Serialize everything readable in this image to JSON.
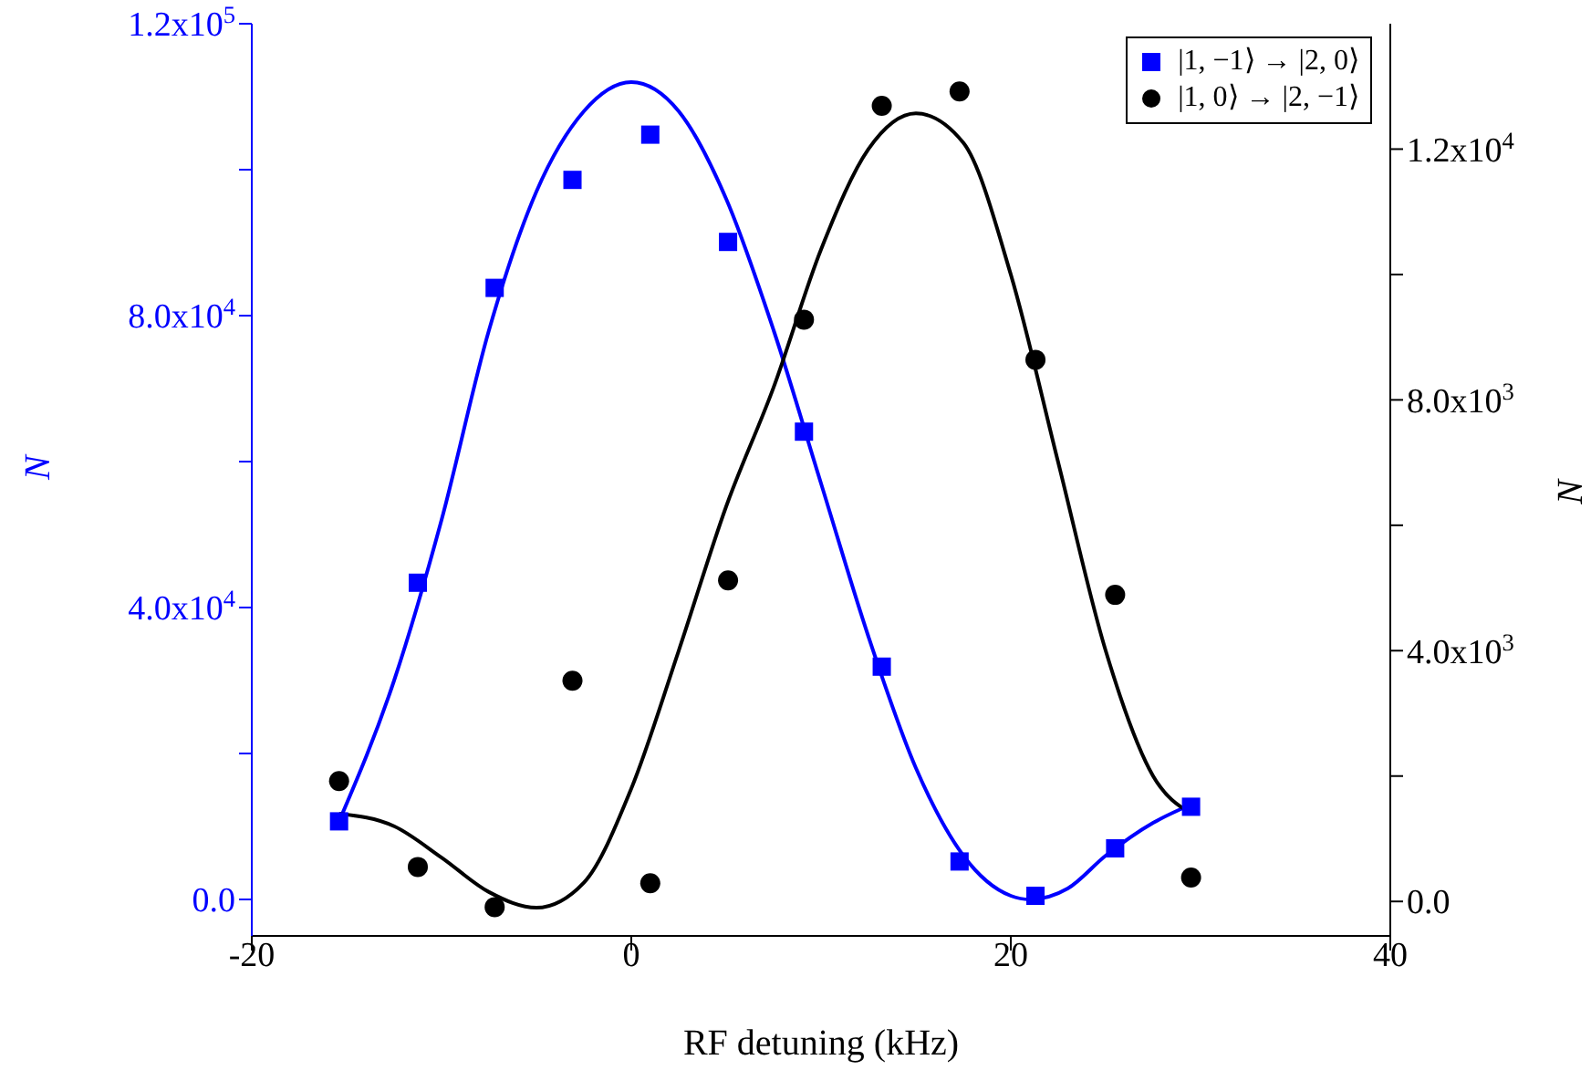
{
  "chart_data": {
    "type": "scatter",
    "xlabel": "RF detuning (kHz)",
    "ylabel": "N",
    "y2label": "N",
    "xlim": [
      -20,
      40
    ],
    "xticks": [
      -20,
      0,
      20,
      40
    ],
    "ylim": [
      -5000,
      120000
    ],
    "yticks": [
      {
        "value": 0,
        "label": "0.0"
      },
      {
        "value": 20000,
        "label": null
      },
      {
        "value": 40000,
        "label": "4.0x10$^{4}$"
      },
      {
        "value": 60000,
        "label": null
      },
      {
        "value": 80000,
        "label": "8.0x10$^{4}$"
      },
      {
        "value": 100000,
        "label": null
      },
      {
        "value": 120000,
        "label": "1.2x10$^{5}$"
      }
    ],
    "y2lim": [
      -550,
      14000
    ],
    "y2ticks": [
      {
        "value": 0,
        "label": "0.0"
      },
      {
        "value": 2000,
        "label": null
      },
      {
        "value": 4000,
        "label": "4.0x10$^{3}$"
      },
      {
        "value": 6000,
        "label": null
      },
      {
        "value": 8000,
        "label": "8.0x10$^{3}$"
      },
      {
        "value": 10000,
        "label": null
      },
      {
        "value": 12000,
        "label": "1.2x10$^{4}$"
      }
    ],
    "legend": "top right",
    "series": [
      {
        "name": "|1, −1⟩ → |2, 0⟩",
        "marker": "square",
        "color": "#0000ff",
        "x": [
          -15.4,
          -11.25,
          -7.2,
          -3.1,
          1.0,
          5.1,
          9.1,
          13.2,
          17.3,
          21.3,
          25.5,
          29.5
        ],
        "values": [
          10700,
          43400,
          83800,
          98600,
          104800,
          90100,
          64100,
          31900,
          5200,
          500,
          7000,
          12700
        ]
      },
      {
        "name": "|1, 0⟩ → |2, −1⟩",
        "marker": "circle",
        "color": "#000000",
        "axis": "y2",
        "x": [
          -15.4,
          -11.25,
          -7.2,
          -3.1,
          1.0,
          5.1,
          9.1,
          13.2,
          17.3,
          21.3,
          25.5,
          29.5
        ],
        "values": [
          1920,
          550,
          -90,
          3520,
          290,
          5120,
          9280,
          12690,
          12920,
          8640,
          4890,
          380
        ]
      },
      {
        "type": "line",
        "marker": "none",
        "color": "#0000ff",
        "x": [
          -15.4,
          -12.5,
          -10,
          -7.5,
          -5,
          -2.5,
          0,
          2.5,
          5,
          7.5,
          10,
          12.5,
          15,
          17.5,
          20,
          21,
          23,
          25,
          27.5,
          29.5
        ],
        "values": [
          10700,
          30000,
          52000,
          78000,
          97000,
          108000,
          112000,
          108000,
          96000,
          78000,
          57000,
          36000,
          18000,
          6000,
          500,
          0,
          1500,
          6000,
          10500,
          13000
        ]
      },
      {
        "type": "line",
        "marker": "none",
        "color": "#000000",
        "axis": "y2",
        "x": [
          -15.4,
          -12.5,
          -10,
          -7.5,
          -5,
          -2.5,
          0,
          2.5,
          5,
          7.5,
          10,
          12.5,
          15,
          17.5,
          20,
          22.5,
          25,
          27.5,
          29.5
        ],
        "values": [
          1400,
          1200,
          700,
          150,
          -100,
          300,
          1800,
          4000,
          6300,
          8200,
          10400,
          12000,
          12570,
          12100,
          10000,
          7000,
          4000,
          2000,
          1400
        ]
      }
    ]
  }
}
